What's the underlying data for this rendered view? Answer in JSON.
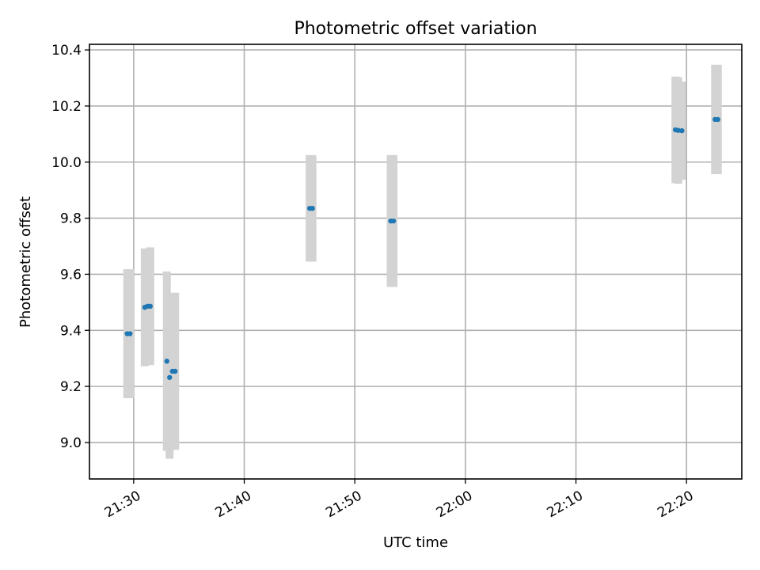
{
  "chart_data": {
    "type": "scatter",
    "title": "Photometric offset variation",
    "xlabel": "UTC time",
    "ylabel": "Photometric offset",
    "xlim": [
      "21:26:00",
      "22:25:00"
    ],
    "ylim": [
      8.87,
      10.42
    ],
    "xticks": [
      "21:30",
      "21:40",
      "21:50",
      "22:00",
      "22:10",
      "22:20"
    ],
    "yticks": [
      9.0,
      9.2,
      9.4,
      9.6,
      9.8,
      10.0,
      10.2,
      10.4
    ],
    "grid": true,
    "point_color": "#1f77b4",
    "errorbar_color": "#d3d3d3",
    "points": [
      {
        "x": "21:29:25",
        "y": 9.388,
        "err": 0.23
      },
      {
        "x": "21:29:40",
        "y": 9.388,
        "err": 0.23
      },
      {
        "x": "21:31:00",
        "y": 9.482,
        "err": 0.21
      },
      {
        "x": "21:31:15",
        "y": 9.486,
        "err": 0.2
      },
      {
        "x": "21:31:30",
        "y": 9.486,
        "err": 0.21
      },
      {
        "x": "21:33:00",
        "y": 9.29,
        "err": 0.32
      },
      {
        "x": "21:33:15",
        "y": 9.232,
        "err": 0.29
      },
      {
        "x": "21:33:30",
        "y": 9.254,
        "err": 0.28
      },
      {
        "x": "21:33:45",
        "y": 9.254,
        "err": 0.28
      },
      {
        "x": "21:45:55",
        "y": 9.835,
        "err": 0.19
      },
      {
        "x": "21:46:10",
        "y": 9.835,
        "err": 0.19
      },
      {
        "x": "21:53:15",
        "y": 9.79,
        "err": 0.235
      },
      {
        "x": "21:53:30",
        "y": 9.79,
        "err": 0.235
      },
      {
        "x": "22:19:00",
        "y": 10.115,
        "err": 0.19
      },
      {
        "x": "22:19:15",
        "y": 10.113,
        "err": 0.19
      },
      {
        "x": "22:19:35",
        "y": 10.112,
        "err": 0.175
      },
      {
        "x": "22:22:35",
        "y": 10.152,
        "err": 0.195
      },
      {
        "x": "22:22:50",
        "y": 10.152,
        "err": 0.195
      }
    ]
  }
}
